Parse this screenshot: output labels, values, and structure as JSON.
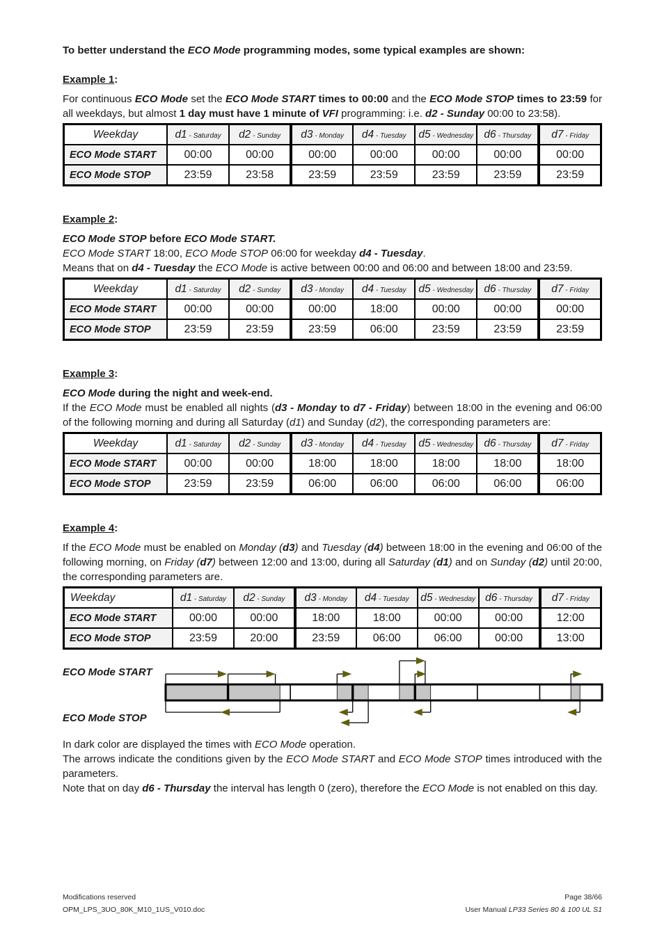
{
  "intro": {
    "runs": [
      {
        "t": "To better understand the ",
        "s": "b"
      },
      {
        "t": "ECO Mode",
        "s": "bi"
      },
      {
        "t": " programming modes, some typical examples are shown:",
        "s": "b"
      }
    ]
  },
  "examples": [
    {
      "title": "Example 1",
      "colon": ":",
      "paragraphs": [
        {
          "runs": [
            {
              "t": "For continuous ",
              "s": "r"
            },
            {
              "t": "ECO Mode",
              "s": "bi"
            },
            {
              "t": " set the ",
              "s": "r"
            },
            {
              "t": "ECO Mode START",
              "s": "bi"
            },
            {
              "t": " times to 00:00",
              "s": "b"
            },
            {
              "t": " and the ",
              "s": "r"
            },
            {
              "t": "ECO Mode STOP",
              "s": "bi"
            },
            {
              "t": " times to 23:59",
              "s": "b"
            },
            {
              "t": " for all weekdays, but almost ",
              "s": "r"
            },
            {
              "t": "1 day must have 1 minute of ",
              "s": "b"
            },
            {
              "t": "VFI",
              "s": "bi"
            },
            {
              "t": " programming: i.e. ",
              "s": "r"
            },
            {
              "t": "d2 - Sunday",
              "s": "bi"
            },
            {
              "t": " 00:00 to 23:58).",
              "s": "r"
            }
          ]
        }
      ],
      "table": {
        "corner": "Weekday",
        "sep": "-",
        "days": [
          {
            "code": "d1",
            "name": "Saturday"
          },
          {
            "code": "d2",
            "name": "Sunday"
          },
          {
            "code": "d3",
            "name": "Monday"
          },
          {
            "code": "d4",
            "name": "Tuesday"
          },
          {
            "code": "d5",
            "name": "Wednesday"
          },
          {
            "code": "d6",
            "name": "Thursday"
          },
          {
            "code": "d7",
            "name": "Friday"
          }
        ],
        "rows": [
          {
            "label": "ECO Mode START",
            "values": [
              "00:00",
              "00:00",
              "00:00",
              "00:00",
              "00:00",
              "00:00",
              "00:00"
            ]
          },
          {
            "label": "ECO Mode STOP",
            "values": [
              "23:59",
              "23:58",
              "23:59",
              "23:59",
              "23:59",
              "23:59",
              "23:59"
            ]
          }
        ]
      }
    },
    {
      "title": "Example 2",
      "colon": ":",
      "paragraphs": [
        {
          "runs": [
            {
              "t": "ECO Mode STOP",
              "s": "bi"
            },
            {
              "t": " before ",
              "s": "b"
            },
            {
              "t": "ECO Mode START.",
              "s": "bi"
            }
          ]
        },
        {
          "runs": [
            {
              "t": "ECO Mode START",
              "s": "i"
            },
            {
              "t": " 18:00, ",
              "s": "r"
            },
            {
              "t": "ECO Mode STOP",
              "s": "i"
            },
            {
              "t": " 06:00 for weekday ",
              "s": "r"
            },
            {
              "t": "d4 - Tuesday",
              "s": "bi"
            },
            {
              "t": ".",
              "s": "r"
            }
          ]
        },
        {
          "runs": [
            {
              "t": "Means that on ",
              "s": "r"
            },
            {
              "t": "d4 - Tuesday",
              "s": "bi"
            },
            {
              "t": " the ",
              "s": "r"
            },
            {
              "t": "ECO Mode",
              "s": "i"
            },
            {
              "t": " is active between 00:00 and 06:00 and between 18:00 and 23:59.",
              "s": "r"
            }
          ]
        }
      ],
      "table": {
        "corner": "Weekday",
        "sep": "-",
        "days": [
          {
            "code": "d1",
            "name": "Saturday"
          },
          {
            "code": "d2",
            "name": "Sunday"
          },
          {
            "code": "d3",
            "name": "Monday"
          },
          {
            "code": "d4",
            "name": "Tuesday"
          },
          {
            "code": "d5",
            "name": "Wednesday"
          },
          {
            "code": "d6",
            "name": "Thursday"
          },
          {
            "code": "d7",
            "name": "Friday"
          }
        ],
        "rows": [
          {
            "label": "ECO Mode START",
            "values": [
              "00:00",
              "00:00",
              "00:00",
              "18:00",
              "00:00",
              "00:00",
              "00:00"
            ]
          },
          {
            "label": "ECO Mode STOP",
            "values": [
              "23:59",
              "23:59",
              "23:59",
              "06:00",
              "23:59",
              "23:59",
              "23:59"
            ]
          }
        ]
      }
    },
    {
      "title": "Example 3",
      "colon": ":",
      "paragraphs": [
        {
          "runs": [
            {
              "t": "ECO Mode",
              "s": "bi"
            },
            {
              "t": " during the night and week-end.",
              "s": "b"
            }
          ]
        },
        {
          "runs": [
            {
              "t": "If the ",
              "s": "r"
            },
            {
              "t": "ECO Mode",
              "s": "i"
            },
            {
              "t": " must be enabled all nights (",
              "s": "r"
            },
            {
              "t": "d3 - Monday",
              "s": "bi"
            },
            {
              "t": " to ",
              "s": "b"
            },
            {
              "t": "d7 - Friday",
              "s": "bi"
            },
            {
              "t": ") between 18:00 in the evening and 06:00 of the following morning and during all Saturday (",
              "s": "r"
            },
            {
              "t": "d1",
              "s": "i"
            },
            {
              "t": ") and Sunday (",
              "s": "r"
            },
            {
              "t": "d2",
              "s": "i"
            },
            {
              "t": "), the corresponding parameters are:",
              "s": "r"
            }
          ]
        }
      ],
      "table": {
        "corner": "Weekday",
        "sep": "-",
        "days": [
          {
            "code": "d1",
            "name": "Saturday"
          },
          {
            "code": "d2",
            "name": "Sunday"
          },
          {
            "code": "d3",
            "name": "Monday"
          },
          {
            "code": "d4",
            "name": "Tuesday"
          },
          {
            "code": "d5",
            "name": "Wednesday"
          },
          {
            "code": "d6",
            "name": "Thursday"
          },
          {
            "code": "d7",
            "name": "Friday"
          }
        ],
        "rows": [
          {
            "label": "ECO Mode START",
            "values": [
              "00:00",
              "00:00",
              "18:00",
              "18:00",
              "18:00",
              "18:00",
              "18:00"
            ]
          },
          {
            "label": "ECO Mode STOP",
            "values": [
              "23:59",
              "23:59",
              "06:00",
              "06:00",
              "06:00",
              "06:00",
              "06:00"
            ]
          }
        ]
      }
    },
    {
      "title": "Example 4",
      "colon": ":",
      "paragraphs": [
        {
          "runs": [
            {
              "t": "If the ",
              "s": "r"
            },
            {
              "t": "ECO Mode",
              "s": "i"
            },
            {
              "t": " must be enabled on ",
              "s": "r"
            },
            {
              "t": "Monday (",
              "s": "i"
            },
            {
              "t": "d3",
              "s": "bi"
            },
            {
              "t": ")",
              "s": "i"
            },
            {
              "t": " and ",
              "s": "r"
            },
            {
              "t": "Tuesday (",
              "s": "i"
            },
            {
              "t": "d4",
              "s": "bi"
            },
            {
              "t": ")",
              "s": "i"
            },
            {
              "t": " between 18:00 in the evening and 06:00 of the following morning, on ",
              "s": "r"
            },
            {
              "t": "Friday (",
              "s": "i"
            },
            {
              "t": "d7",
              "s": "bi"
            },
            {
              "t": ")",
              "s": "i"
            },
            {
              "t": " between 12:00 and 13:00, during all ",
              "s": "r"
            },
            {
              "t": "Saturday (",
              "s": "i"
            },
            {
              "t": "d1",
              "s": "bi"
            },
            {
              "t": ")",
              "s": "i"
            },
            {
              "t": " and on ",
              "s": "r"
            },
            {
              "t": "Sunday (",
              "s": "i"
            },
            {
              "t": "d2",
              "s": "bi"
            },
            {
              "t": ")",
              "s": "i"
            },
            {
              "t": " until 20:00, the corresponding parameters are.",
              "s": "r"
            }
          ]
        }
      ],
      "table": {
        "corner": "Weekday",
        "sep": "-",
        "days": [
          {
            "code": "d1",
            "name": "Saturday"
          },
          {
            "code": "d2",
            "name": "Sunday"
          },
          {
            "code": "d3",
            "name": "Monday"
          },
          {
            "code": "d4",
            "name": "Tuesday"
          },
          {
            "code": "d5",
            "name": "Wednesday"
          },
          {
            "code": "d6",
            "name": "Thursday"
          },
          {
            "code": "d7",
            "name": "Friday"
          }
        ],
        "rows": [
          {
            "label": "ECO Mode START",
            "values": [
              "00:00",
              "00:00",
              "18:00",
              "18:00",
              "00:00",
              "00:00",
              "12:00"
            ]
          },
          {
            "label": "ECO Mode STOP",
            "values": [
              "23:59",
              "20:00",
              "23:59",
              "06:00",
              "06:00",
              "00:00",
              "13:00"
            ]
          }
        ]
      }
    }
  ],
  "diagram": {
    "start_label": "ECO Mode START",
    "stop_label": "ECO Mode STOP",
    "bar_fill": "#c6c6c6",
    "arrow_color": "#5f5f10",
    "days": [
      "d1",
      "d2",
      "d3",
      "d4",
      "d5",
      "d6",
      "d7"
    ],
    "start_times": [
      "00:00",
      "00:00",
      "18:00",
      "18:00",
      "00:00",
      "00:00",
      "12:00"
    ],
    "stop_times": [
      "23:59",
      "20:00",
      "23:59",
      "06:00",
      "06:00",
      "00:00",
      "13:00"
    ]
  },
  "notes": [
    {
      "runs": [
        {
          "t": "In dark color are displayed the times with ",
          "s": "r"
        },
        {
          "t": "ECO Mode",
          "s": "i"
        },
        {
          "t": " operation.",
          "s": "r"
        }
      ]
    },
    {
      "runs": [
        {
          "t": "The arrows indicate the conditions given by the ",
          "s": "r"
        },
        {
          "t": "ECO Mode START",
          "s": "i"
        },
        {
          "t": " and ",
          "s": "r"
        },
        {
          "t": "ECO Mode STOP",
          "s": "i"
        },
        {
          "t": " times introduced with the parameters.",
          "s": "r"
        }
      ]
    },
    {
      "runs": [
        {
          "t": "Note that on day ",
          "s": "r"
        },
        {
          "t": "d6 - Thursday",
          "s": "bi"
        },
        {
          "t": " the interval has length 0 (zero), therefore the ",
          "s": "r"
        },
        {
          "t": "ECO Mode",
          "s": "i"
        },
        {
          "t": " is not enabled on this day.",
          "s": "r"
        }
      ]
    }
  ],
  "footer": {
    "left_line1": "Modifications reserved",
    "left_line2": "OPM_LPS_3UO_80K_M10_1US_V010.doc",
    "right_line1": "Page 38/66",
    "right_line2": {
      "runs": [
        {
          "t": "User Manual ",
          "s": "r"
        },
        {
          "t": "LP33 Series 80 & 100 UL S1",
          "s": "i"
        }
      ]
    }
  }
}
